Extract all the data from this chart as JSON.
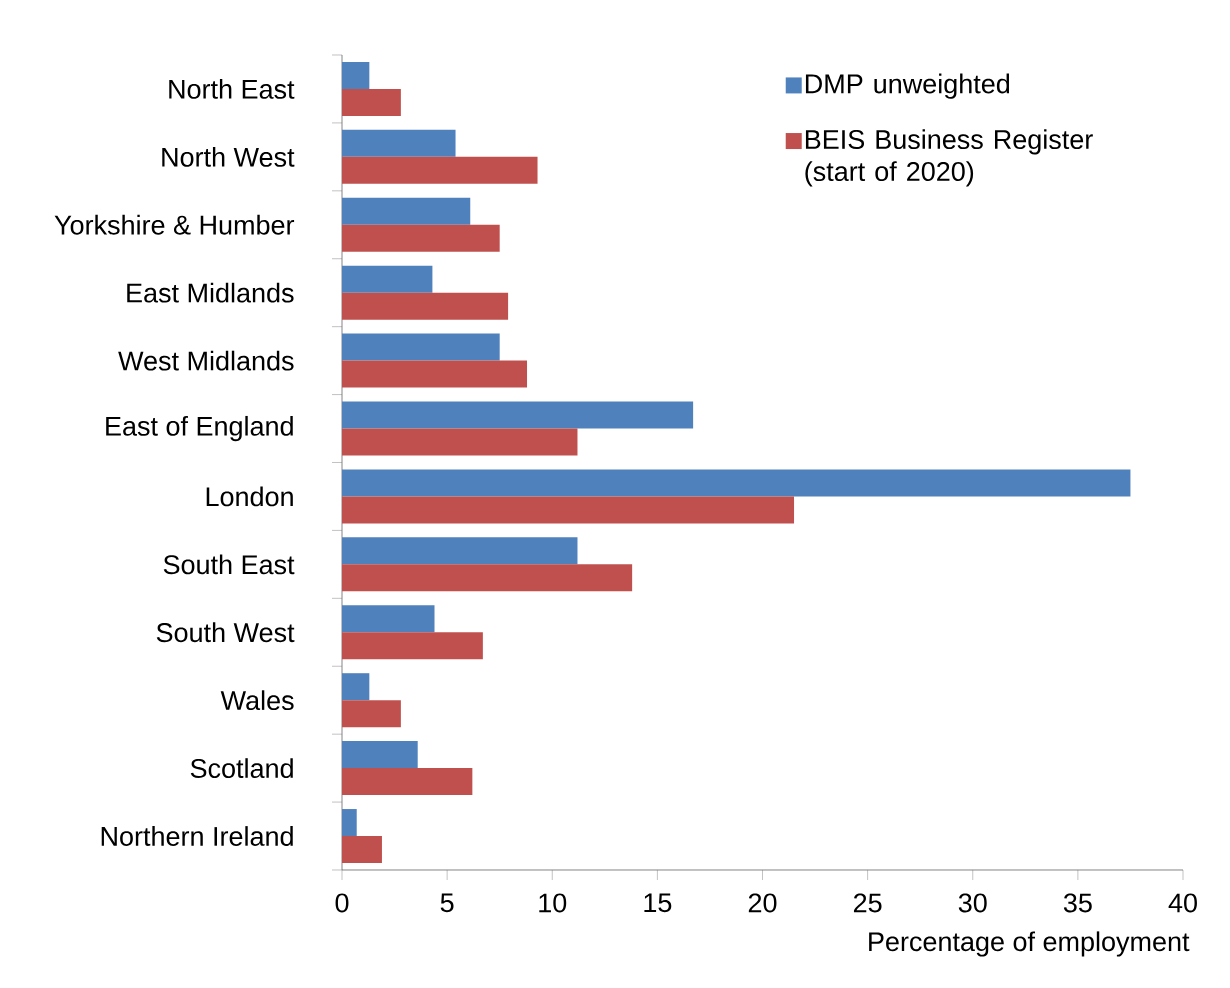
{
  "chart_data": {
    "type": "bar",
    "orientation": "horizontal",
    "xlabel": "Percentage of employment",
    "legend": "top right",
    "categories": [
      "North East",
      "North West",
      "Yorkshire & Humber",
      "East Midlands",
      "West Midlands",
      "East of England",
      "London",
      "South East",
      "South West",
      "Wales",
      "Scotland",
      "Northern Ireland"
    ],
    "series": [
      {
        "name": "DMP unweighted",
        "color": "#4f81bd",
        "values": [
          1.3,
          5.4,
          6.1,
          4.3,
          7.5,
          16.7,
          37.5,
          11.2,
          4.4,
          1.3,
          3.6,
          0.7
        ]
      },
      {
        "name": "BEIS Business Register (start of 2020)",
        "color": "#c0504d",
        "values": [
          2.8,
          9.3,
          7.5,
          7.9,
          8.8,
          11.2,
          21.5,
          13.8,
          6.7,
          2.8,
          6.2,
          1.9
        ]
      }
    ],
    "xlim": [
      0,
      40
    ],
    "xticks": [
      0,
      5,
      10,
      15,
      20,
      25,
      30,
      35,
      40
    ]
  }
}
